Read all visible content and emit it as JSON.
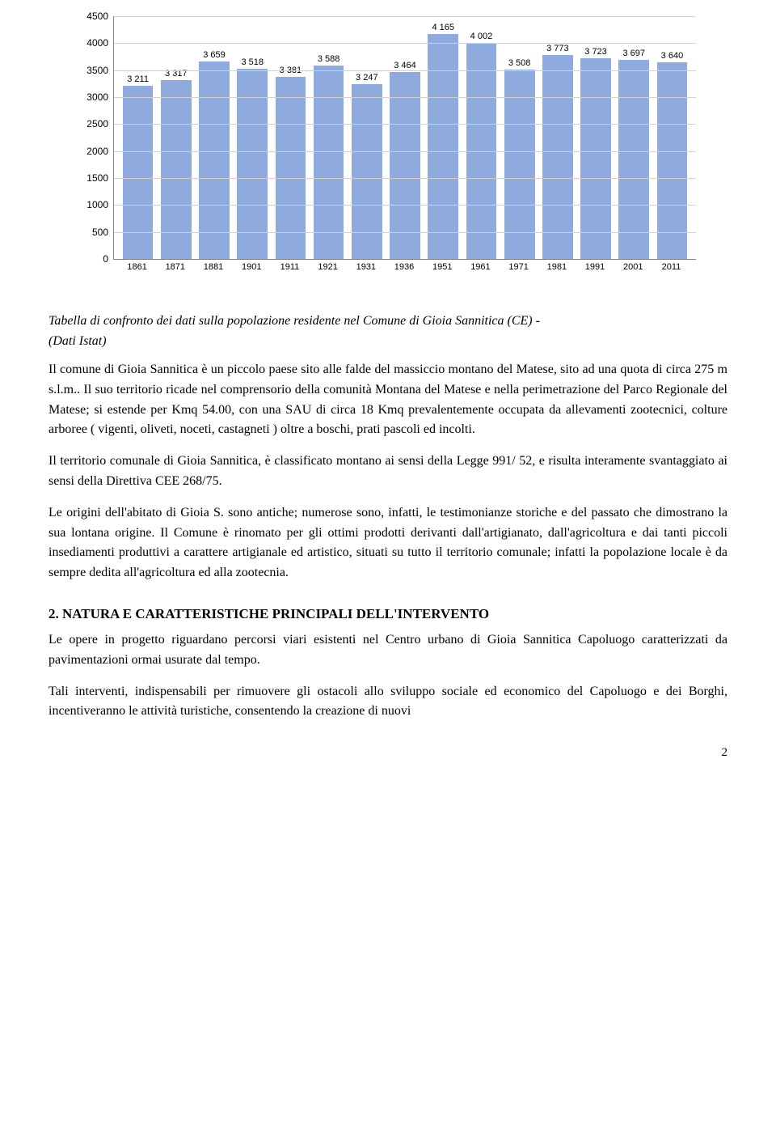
{
  "chart": {
    "type": "bar",
    "categories": [
      "1861",
      "1871",
      "1881",
      "1901",
      "1911",
      "1921",
      "1931",
      "1936",
      "1951",
      "1961",
      "1971",
      "1981",
      "1991",
      "2001",
      "2011"
    ],
    "values": [
      3211,
      3317,
      3659,
      3518,
      3381,
      3588,
      3247,
      3464,
      4165,
      4002,
      3508,
      3773,
      3723,
      3697,
      3640
    ],
    "ymin": 0,
    "ymax": 4500,
    "ytick_step": 500,
    "bar_color": "#8faadc",
    "grid_color": "#d0d0d0",
    "axis_color": "#808080",
    "label_fontsize": 11
  },
  "caption": {
    "line1": "Tabella di confronto dei dati sulla popolazione residente nel Comune di Gioia Sannitica (CE) -",
    "line2": "(Dati Istat)"
  },
  "paragraphs": {
    "p1": "Il comune di Gioia Sannitica è un  piccolo paese sito alle falde del massiccio montano del Matese, sito ad una quota di circa 275 m s.l.m.. Il suo territorio ricade nel comprensorio della comunità Montana del Matese e nella perimetrazione del Parco Regionale del Matese;  si estende per Kmq 54.00, con una SAU di circa 18 Kmq prevalentemente occupata da allevamenti zootecnici, colture arboree ( vigenti, oliveti, noceti, castagneti ) oltre a boschi, prati pascoli ed incolti.",
    "p2": "Il territorio comunale di Gioia Sannitica, è classificato montano ai sensi della Legge  991/ 52,   e risulta interamente svantaggiato ai sensi della Direttiva CEE 268/75.",
    "p3": "Le origini dell'abitato di Gioia S. sono antiche; numerose sono, infatti, le testimonianze storiche e del passato che dimostrano la sua lontana origine. Il Comune è rinomato per gli ottimi prodotti derivanti dall'artigianato, dall'agricoltura e dai tanti piccoli insediamenti produttivi a carattere artigianale ed artistico, situati su tutto il territorio comunale; infatti la popolazione locale è da sempre dedita all'agricoltura ed alla zootecnia."
  },
  "section2": {
    "heading": "2.   NATURA E CARATTERISTICHE PRINCIPALI DELL'INTERVENTO",
    "p1": " Le opere in progetto riguardano percorsi viari esistenti nel Centro urbano di Gioia Sannitica Capoluogo caratterizzati da pavimentazioni ormai usurate dal tempo.",
    "p2": "Tali interventi, indispensabili per rimuovere gli ostacoli allo sviluppo sociale ed economico del Capoluogo e dei Borghi, incentiveranno le attività turistiche, consentendo la creazione di nuovi"
  },
  "page_number": "2"
}
